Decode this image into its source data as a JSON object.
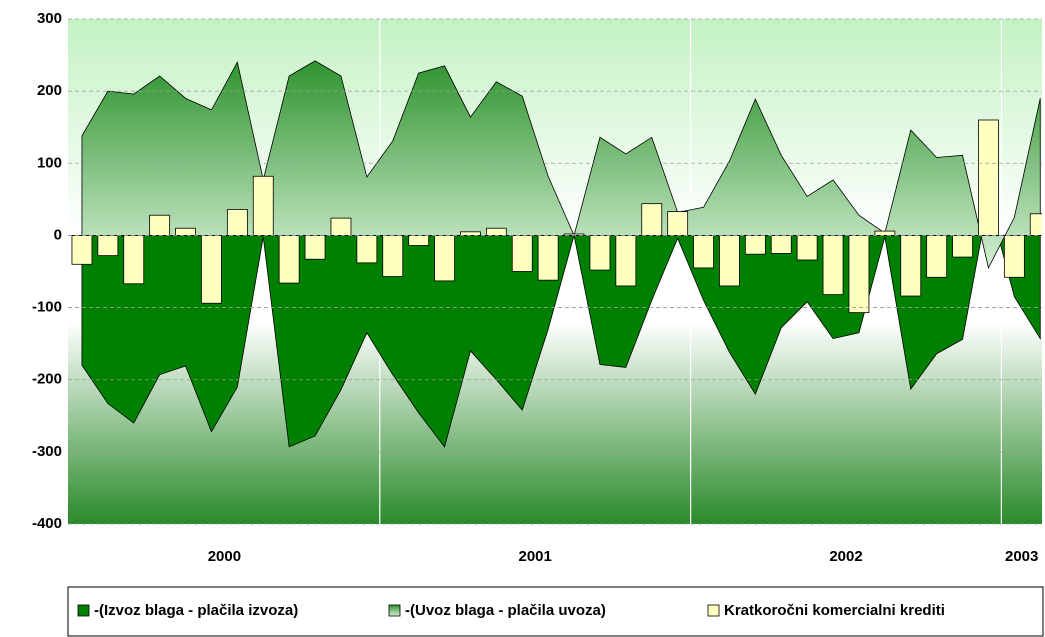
{
  "chart_data": {
    "type": "combo",
    "x_groups": [
      {
        "label": "2000",
        "span": 12
      },
      {
        "label": "2001",
        "span": 12
      },
      {
        "label": "2002",
        "span": 12
      },
      {
        "label": "2003",
        "span": 2
      }
    ],
    "categories": [
      null,
      null,
      null,
      null,
      null,
      null,
      null,
      null,
      null,
      null,
      null,
      null,
      null,
      null,
      null,
      null,
      null,
      null,
      null,
      null,
      null,
      null,
      null,
      null,
      null,
      null,
      null,
      null,
      null,
      null,
      null,
      null,
      null,
      null,
      null,
      null,
      null,
      null
    ],
    "series": [
      {
        "name": "-(Izvoz blaga - plačila izvoza)",
        "kind": "area",
        "color": "#008000",
        "values": [
          -180,
          -233,
          -260,
          -193,
          -181,
          -272,
          -210,
          -2,
          -293,
          -278,
          -214,
          -135,
          -193,
          -246,
          -293,
          -160,
          -200,
          -242,
          -130,
          0,
          -179,
          -183,
          -90,
          -4,
          -90,
          -162,
          -220,
          -128,
          -92,
          -143,
          -135,
          -2,
          -213,
          -164,
          -144,
          50,
          -85,
          -143
        ]
      },
      {
        "name": "-(Uvoz blaga - plačila uvoza)",
        "kind": "area",
        "color": "#3f9f3f",
        "values": [
          138,
          200,
          196,
          221,
          190,
          174,
          240,
          77,
          221,
          242,
          221,
          81,
          131,
          225,
          235,
          164,
          213,
          193,
          82,
          0,
          136,
          113,
          136,
          32,
          39,
          103,
          189,
          111,
          54,
          77,
          28,
          3,
          146,
          108,
          111,
          -45,
          25,
          190
        ]
      },
      {
        "name": "Kratkoročni komercialni krediti",
        "kind": "bar",
        "color": "#ffffc0",
        "values": [
          -40,
          -28,
          -67,
          28,
          10,
          -94,
          36,
          82,
          -66,
          -33,
          24,
          -38,
          -57,
          -14,
          -63,
          5,
          10,
          -50,
          -62,
          2,
          -48,
          -70,
          44,
          33,
          -45,
          -70,
          -26,
          -25,
          -34,
          -82,
          -107,
          6,
          -84,
          -58,
          -30,
          160,
          -58,
          30
        ]
      }
    ],
    "ylim": [
      -400,
      300
    ],
    "yticks": [
      -400,
      -300,
      -200,
      -100,
      0,
      100,
      200,
      300
    ],
    "grid": true
  }
}
